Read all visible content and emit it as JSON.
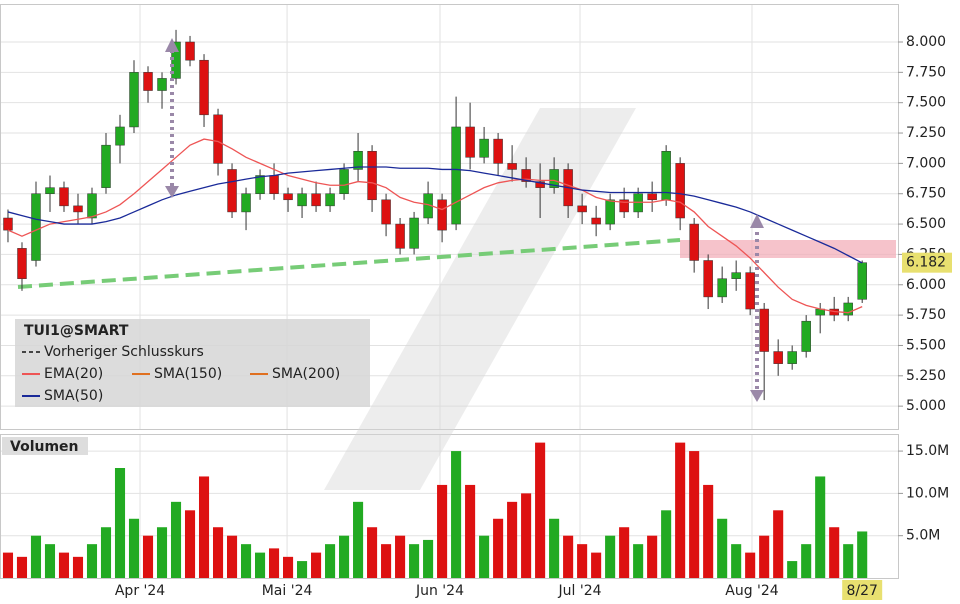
{
  "chart_data": [
    {
      "type": "candlestick",
      "title": "TUI1@SMART",
      "legend_extra": [
        "Vorheriger Schlusskurs",
        "SMA(150)",
        "SMA(200)"
      ],
      "xlim": [
        -0.57,
        63.7
      ],
      "xticks": [
        {
          "value": 9.43,
          "label": "Apr '24"
        },
        {
          "value": 19.93,
          "label": "Mai '24"
        },
        {
          "value": 30.85,
          "label": "Jun '24"
        },
        {
          "value": 40.85,
          "label": "Jul '24"
        },
        {
          "value": 53.13,
          "label": "Aug '24"
        },
        {
          "value": 61,
          "label": "8/27"
        }
      ],
      "ylim": [
        4.82,
        8.313
      ],
      "yticks": [
        {
          "value": 5,
          "label": "5.000"
        },
        {
          "value": 5.25,
          "label": "5.250"
        },
        {
          "value": 5.5,
          "label": "5.500"
        },
        {
          "value": 5.75,
          "label": "5.750"
        },
        {
          "value": 6,
          "label": "6.000"
        },
        {
          "value": 6.25,
          "label": "6.250"
        },
        {
          "value": 6.5,
          "label": "6.500"
        },
        {
          "value": 6.75,
          "label": "6.750"
        },
        {
          "value": 7,
          "label": "7.000"
        },
        {
          "value": 7.25,
          "label": "7.250"
        },
        {
          "value": 7.5,
          "label": "7.500"
        },
        {
          "value": 7.75,
          "label": "7.750"
        },
        {
          "value": 8,
          "label": "8.000"
        }
      ],
      "grid": true,
      "up_color": "#22aa22",
      "down_color": "#dd1111",
      "open": [
        6.55,
        6.3,
        6.2,
        6.75,
        6.8,
        6.65,
        6.55,
        6.8,
        7.15,
        7.3,
        7.75,
        7.6,
        7.7,
        8.0,
        7.85,
        7.4,
        6.95,
        6.6,
        6.75,
        6.9,
        6.75,
        6.65,
        6.75,
        6.65,
        6.75,
        6.95,
        7.1,
        6.7,
        6.5,
        6.3,
        6.55,
        6.7,
        6.5,
        7.3,
        7.05,
        7.2,
        7.0,
        6.95,
        6.85,
        6.8,
        6.95,
        6.65,
        6.55,
        6.5,
        6.7,
        6.6,
        6.75,
        6.7,
        7.0,
        6.5,
        6.2,
        5.9,
        6.05,
        6.1,
        5.8,
        5.45,
        5.35,
        5.45,
        5.75,
        5.8,
        5.75,
        5.88
      ],
      "high": [
        6.62,
        6.35,
        6.85,
        6.9,
        6.85,
        6.75,
        6.8,
        7.25,
        7.4,
        7.85,
        7.8,
        7.75,
        8.1,
        8.05,
        7.9,
        7.45,
        7.0,
        6.8,
        6.95,
        7.0,
        6.8,
        6.8,
        6.85,
        6.8,
        7.0,
        7.25,
        7.15,
        6.75,
        6.55,
        6.6,
        6.85,
        6.75,
        7.55,
        7.5,
        7.3,
        7.25,
        7.15,
        7.05,
        7.0,
        7.05,
        7.0,
        6.75,
        6.65,
        6.75,
        6.8,
        6.8,
        6.85,
        7.15,
        7.05,
        6.55,
        6.25,
        6.15,
        6.2,
        6.15,
        5.85,
        5.55,
        5.5,
        5.75,
        5.85,
        5.9,
        5.9,
        6.2
      ],
      "low": [
        6.35,
        5.95,
        6.15,
        6.6,
        6.6,
        6.5,
        6.5,
        6.75,
        7.0,
        7.25,
        7.5,
        7.45,
        7.65,
        7.8,
        7.3,
        6.9,
        6.55,
        6.45,
        6.7,
        6.7,
        6.6,
        6.55,
        6.6,
        6.6,
        6.7,
        6.85,
        6.6,
        6.4,
        6.25,
        6.25,
        6.5,
        6.35,
        6.45,
        6.95,
        7.0,
        6.9,
        6.85,
        6.8,
        6.55,
        6.75,
        6.55,
        6.5,
        6.4,
        6.45,
        6.55,
        6.55,
        6.6,
        6.65,
        6.45,
        6.1,
        5.8,
        5.85,
        5.95,
        5.75,
        5.05,
        5.25,
        5.3,
        5.4,
        5.6,
        5.7,
        5.7,
        5.85
      ],
      "close": [
        6.45,
        6.05,
        6.75,
        6.8,
        6.65,
        6.6,
        6.75,
        7.15,
        7.3,
        7.75,
        7.6,
        7.7,
        8.0,
        7.85,
        7.4,
        7.0,
        6.6,
        6.75,
        6.9,
        6.75,
        6.7,
        6.75,
        6.65,
        6.75,
        6.95,
        7.1,
        6.7,
        6.5,
        6.3,
        6.55,
        6.75,
        6.45,
        7.3,
        7.05,
        7.2,
        7.0,
        6.95,
        6.85,
        6.8,
        6.95,
        6.65,
        6.6,
        6.5,
        6.7,
        6.6,
        6.75,
        6.7,
        7.1,
        6.55,
        6.2,
        5.9,
        6.05,
        6.1,
        5.8,
        5.45,
        5.35,
        5.45,
        5.7,
        5.8,
        5.75,
        5.85,
        6.182
      ],
      "series": [
        {
          "name": "EMA(20)",
          "color": "#ee5555",
          "values": [
            6.45,
            6.4,
            6.45,
            6.5,
            6.52,
            6.54,
            6.56,
            6.6,
            6.66,
            6.75,
            6.85,
            6.95,
            7.05,
            7.15,
            7.2,
            7.18,
            7.12,
            7.05,
            7.0,
            6.95,
            6.9,
            6.87,
            6.84,
            6.82,
            6.82,
            6.85,
            6.84,
            6.8,
            6.72,
            6.68,
            6.66,
            6.62,
            6.68,
            6.74,
            6.8,
            6.84,
            6.86,
            6.87,
            6.86,
            6.86,
            6.82,
            6.78,
            6.72,
            6.69,
            6.68,
            6.68,
            6.68,
            6.7,
            6.68,
            6.6,
            6.48,
            6.4,
            6.32,
            6.22,
            6.1,
            5.98,
            5.88,
            5.83,
            5.8,
            5.78,
            5.77,
            5.82
          ]
        },
        {
          "name": "SMA(50)",
          "color": "#1a2a99",
          "values": [
            6.6,
            6.57,
            6.54,
            6.52,
            6.5,
            6.5,
            6.5,
            6.52,
            6.55,
            6.6,
            6.65,
            6.7,
            6.74,
            6.77,
            6.8,
            6.83,
            6.85,
            6.87,
            6.89,
            6.9,
            6.92,
            6.93,
            6.94,
            6.95,
            6.96,
            6.97,
            6.97,
            6.97,
            6.96,
            6.96,
            6.96,
            6.95,
            6.95,
            6.94,
            6.92,
            6.9,
            6.88,
            6.86,
            6.84,
            6.82,
            6.8,
            6.78,
            6.77,
            6.76,
            6.76,
            6.76,
            6.76,
            6.76,
            6.75,
            6.73,
            6.7,
            6.67,
            6.64,
            6.6,
            6.55,
            6.5,
            6.45,
            6.4,
            6.35,
            6.3,
            6.24,
            6.18
          ]
        }
      ]
    },
    {
      "type": "bar",
      "title": "Volumen",
      "ylim": [
        0,
        16.9
      ],
      "yticks": [
        {
          "value": 5,
          "label": "5.0M"
        },
        {
          "value": 10,
          "label": "10.0M"
        },
        {
          "value": 15,
          "label": "15.0M"
        }
      ],
      "values": [
        3,
        2.5,
        5,
        4,
        3,
        2.5,
        4,
        6,
        13,
        7,
        5,
        6,
        9,
        8,
        12,
        6,
        5,
        4,
        3,
        3.5,
        2.5,
        2,
        3,
        4,
        5,
        9,
        6,
        4,
        5,
        4,
        4.5,
        11,
        15,
        11,
        5,
        7,
        9,
        10,
        16,
        7,
        5,
        4,
        3,
        5,
        6,
        4,
        5,
        8,
        16,
        15,
        11,
        7,
        4,
        3,
        5,
        8,
        2,
        4,
        12,
        6,
        4,
        5.5
      ]
    }
  ]
}
